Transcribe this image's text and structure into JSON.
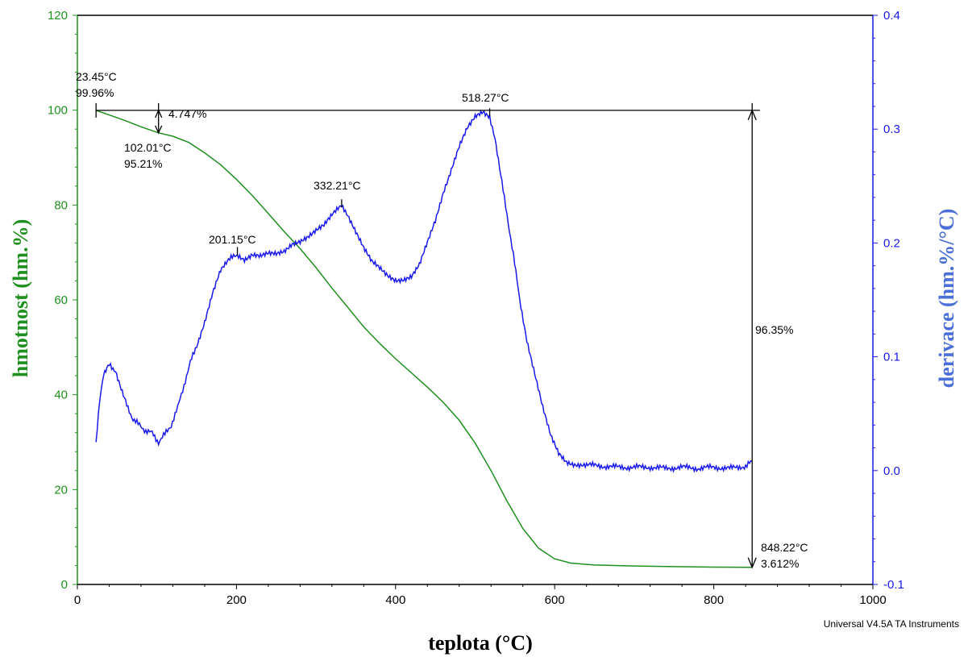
{
  "chart_data": {
    "type": "line",
    "title": "",
    "xlabel": "teplota (°C)",
    "ylabel_left": "hmotnost (hm.%)",
    "ylabel_right": "derivace (hm.%/°C)",
    "xlim": [
      0,
      1000
    ],
    "ylim_left": [
      0,
      120
    ],
    "ylim_right": [
      -0.1,
      0.4
    ],
    "x_ticks": [
      "0",
      "200",
      "400",
      "600",
      "800",
      "1000"
    ],
    "y_left_ticks": [
      "0",
      "20",
      "40",
      "60",
      "80",
      "100",
      "120"
    ],
    "y_right_ticks": [
      "-0.1",
      "0.0",
      "0.1",
      "0.2",
      "0.3",
      "0.4"
    ],
    "grid": false,
    "colors": {
      "weight": "#1f8f1f",
      "derivative": "#1a1aee",
      "annotation": "#000000",
      "right_axis_label": "#4a6fd8"
    },
    "series": [
      {
        "axis": "left",
        "x": [
          23.45,
          40,
          60,
          80,
          102.01,
          120,
          140,
          160,
          180,
          200,
          220,
          240,
          260,
          280,
          300,
          320,
          340,
          360,
          380,
          400,
          420,
          440,
          460,
          480,
          500,
          520,
          540,
          560,
          580,
          600,
          620,
          650,
          700,
          750,
          800,
          848.22
        ],
        "y": [
          99.96,
          99.0,
          97.8,
          96.5,
          95.21,
          94.5,
          93.2,
          91.0,
          88.5,
          85.4,
          82.0,
          78.2,
          74.4,
          70.8,
          66.8,
          62.5,
          58.4,
          54.3,
          50.8,
          47.6,
          44.6,
          41.6,
          38.4,
          34.6,
          29.8,
          24.0,
          17.6,
          11.8,
          7.6,
          5.4,
          4.5,
          4.1,
          3.9,
          3.75,
          3.65,
          3.612
        ]
      },
      {
        "axis": "right",
        "x": [
          23.45,
          28,
          33,
          40,
          48,
          55,
          62,
          70,
          78,
          86,
          94,
          102.01,
          110,
          118,
          126,
          134,
          142,
          150,
          160,
          170,
          180,
          190,
          201.15,
          210,
          220,
          230,
          240,
          250,
          260,
          270,
          280,
          290,
          300,
          310,
          320,
          332.21,
          340,
          350,
          360,
          370,
          380,
          390,
          400,
          410,
          420,
          430,
          440,
          450,
          460,
          470,
          480,
          490,
          500,
          510,
          518.27,
          525,
          532,
          540,
          548,
          556,
          565,
          575,
          585,
          595,
          605,
          615,
          625,
          640,
          660,
          680,
          700,
          720,
          740,
          760,
          780,
          800,
          820,
          840,
          848.22
        ],
        "y": [
          0.025,
          0.06,
          0.085,
          0.093,
          0.088,
          0.073,
          0.058,
          0.045,
          0.04,
          0.035,
          0.033,
          0.025,
          0.032,
          0.04,
          0.055,
          0.075,
          0.095,
          0.11,
          0.13,
          0.155,
          0.175,
          0.185,
          0.19,
          0.186,
          0.19,
          0.188,
          0.19,
          0.19,
          0.193,
          0.2,
          0.202,
          0.205,
          0.21,
          0.215,
          0.225,
          0.232,
          0.225,
          0.21,
          0.195,
          0.183,
          0.178,
          0.172,
          0.168,
          0.168,
          0.17,
          0.18,
          0.2,
          0.22,
          0.245,
          0.265,
          0.285,
          0.3,
          0.31,
          0.315,
          0.312,
          0.29,
          0.26,
          0.225,
          0.19,
          0.15,
          0.115,
          0.085,
          0.055,
          0.03,
          0.015,
          0.008,
          0.006,
          0.005,
          0.004,
          0.003,
          0.003,
          0.003,
          0.002,
          0.003,
          0.002,
          0.003,
          0.002,
          0.004,
          0.008
        ]
      }
    ],
    "annotations": {
      "start_temp": "23.45°C",
      "start_weight": "99.96%",
      "step1_loss": "4.747%",
      "step1_temp": "102.01°C",
      "step1_weight": "95.21%",
      "peak1": "201.15°C",
      "peak2": "332.21°C",
      "peak3": "518.27°C",
      "total_loss": "96.35%",
      "end_temp": "848.22°C",
      "end_weight": "3.612%"
    },
    "footer": "Universal V4.5A TA Instruments"
  }
}
